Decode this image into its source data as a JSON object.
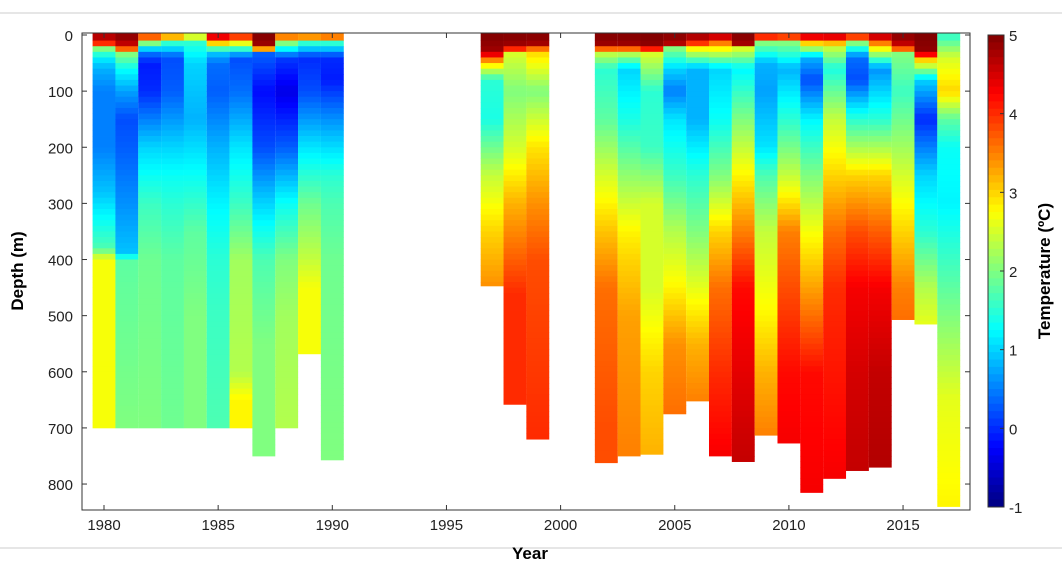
{
  "chart_data": {
    "type": "heatmap",
    "title": "",
    "xlabel": "Year",
    "ylabel": "Depth (m)",
    "colorbar_label": "Temperature (ºC)",
    "colormap": "jet",
    "clim": [
      -1,
      5
    ],
    "xlim": [
      1979,
      2018
    ],
    "ylim": [
      850,
      -4
    ],
    "xticks": [
      "1980",
      "1985",
      "1990",
      "1995",
      "2000",
      "2005",
      "2010",
      "2015"
    ],
    "yticks": [
      "0",
      "100",
      "200",
      "300",
      "400",
      "500",
      "600",
      "700",
      "800"
    ],
    "cticks": [
      "5",
      "4",
      "3",
      "2",
      "1",
      "0",
      "-1"
    ],
    "columns": [
      {
        "year": 1980,
        "max_depth": 700,
        "profile": [
          [
            0,
            5
          ],
          [
            15,
            4
          ],
          [
            25,
            2
          ],
          [
            40,
            1.2
          ],
          [
            60,
            0.8
          ],
          [
            100,
            0.5
          ],
          [
            200,
            0.5
          ],
          [
            280,
            0.9
          ],
          [
            330,
            1.3
          ],
          [
            380,
            1.7
          ],
          [
            400,
            2.7
          ],
          [
            700,
            2.7
          ]
        ]
      },
      {
        "year": 1981,
        "max_depth": 700,
        "profile": [
          [
            0,
            5
          ],
          [
            20,
            4.5
          ],
          [
            35,
            2
          ],
          [
            60,
            1.3
          ],
          [
            100,
            0.7
          ],
          [
            150,
            0.2
          ],
          [
            200,
            0.3
          ],
          [
            300,
            0.6
          ],
          [
            390,
            0.9
          ],
          [
            400,
            1.8
          ],
          [
            550,
            1.9
          ],
          [
            700,
            2
          ]
        ]
      },
      {
        "year": 1982,
        "max_depth": 700,
        "profile": [
          [
            0,
            4.5
          ],
          [
            15,
            2
          ],
          [
            30,
            0.5
          ],
          [
            50,
            -0.1
          ],
          [
            100,
            0
          ],
          [
            150,
            0.5
          ],
          [
            200,
            1
          ],
          [
            250,
            1.3
          ],
          [
            300,
            1.6
          ],
          [
            400,
            1.9
          ],
          [
            700,
            2
          ]
        ]
      },
      {
        "year": 1983,
        "max_depth": 700,
        "profile": [
          [
            0,
            4
          ],
          [
            15,
            1.5
          ],
          [
            40,
            0.2
          ],
          [
            100,
            0.3
          ],
          [
            200,
            1
          ],
          [
            250,
            1.3
          ],
          [
            300,
            1.5
          ],
          [
            400,
            1.8
          ],
          [
            700,
            1.9
          ]
        ]
      },
      {
        "year": 1984,
        "max_depth": 700,
        "profile": [
          [
            0,
            3
          ],
          [
            15,
            1.5
          ],
          [
            50,
            1
          ],
          [
            150,
            0.8
          ],
          [
            250,
            1.3
          ],
          [
            350,
            1.8
          ],
          [
            500,
            2
          ],
          [
            700,
            2
          ]
        ]
      },
      {
        "year": 1985,
        "max_depth": 700,
        "profile": [
          [
            0,
            5
          ],
          [
            15,
            3
          ],
          [
            30,
            1
          ],
          [
            50,
            0.4
          ],
          [
            100,
            0.3
          ],
          [
            200,
            0.8
          ],
          [
            300,
            1.2
          ],
          [
            400,
            1.5
          ],
          [
            500,
            1.6
          ],
          [
            700,
            1.7
          ]
        ]
      },
      {
        "year": 1986,
        "max_depth": 700,
        "profile": [
          [
            0,
            4.5
          ],
          [
            20,
            2
          ],
          [
            40,
            0.2
          ],
          [
            100,
            0.4
          ],
          [
            200,
            1.1
          ],
          [
            300,
            1.6
          ],
          [
            400,
            2.2
          ],
          [
            600,
            2.3
          ],
          [
            650,
            2.8
          ],
          [
            700,
            2.8
          ]
        ]
      },
      {
        "year": 1987,
        "max_depth": 750,
        "profile": [
          [
            0,
            5
          ],
          [
            20,
            4.8
          ],
          [
            35,
            0.3
          ],
          [
            100,
            -0.2
          ],
          [
            200,
            0.2
          ],
          [
            300,
            1
          ],
          [
            400,
            1.7
          ],
          [
            550,
            2
          ],
          [
            750,
            2
          ]
        ]
      },
      {
        "year": 1988,
        "max_depth": 700,
        "profile": [
          [
            0,
            4.2
          ],
          [
            15,
            2
          ],
          [
            40,
            0.1
          ],
          [
            100,
            -0.4
          ],
          [
            200,
            0.3
          ],
          [
            300,
            1.3
          ],
          [
            400,
            2
          ],
          [
            500,
            2.2
          ],
          [
            700,
            2.3
          ]
        ]
      },
      {
        "year": 1989,
        "max_depth": 568,
        "profile": [
          [
            0,
            4.3
          ],
          [
            15,
            1.5
          ],
          [
            40,
            0
          ],
          [
            100,
            0.2
          ],
          [
            200,
            1.1
          ],
          [
            300,
            1.9
          ],
          [
            400,
            2.4
          ],
          [
            450,
            2.7
          ],
          [
            568,
            2.7
          ]
        ]
      },
      {
        "year": 1990,
        "max_depth": 757,
        "profile": [
          [
            0,
            4.5
          ],
          [
            15,
            1.5
          ],
          [
            40,
            0
          ],
          [
            80,
            -0.1
          ],
          [
            150,
            0.6
          ],
          [
            250,
            1.5
          ],
          [
            300,
            1.7
          ],
          [
            400,
            1.9
          ],
          [
            757,
            2
          ]
        ]
      },
      {
        "year": 1997,
        "max_depth": 447,
        "profile": [
          [
            0,
            5
          ],
          [
            30,
            4.8
          ],
          [
            50,
            3
          ],
          [
            80,
            1.5
          ],
          [
            150,
            1.4
          ],
          [
            250,
            2.4
          ],
          [
            350,
            3
          ],
          [
            447,
            3.4
          ]
        ]
      },
      {
        "year": 1998,
        "max_depth": 658,
        "profile": [
          [
            0,
            5
          ],
          [
            20,
            4.8
          ],
          [
            35,
            2.5
          ],
          [
            100,
            2
          ],
          [
            200,
            2.5
          ],
          [
            300,
            3.2
          ],
          [
            400,
            3.7
          ],
          [
            460,
            4
          ],
          [
            658,
            4
          ]
        ]
      },
      {
        "year": 1999,
        "max_depth": 720,
        "profile": [
          [
            0,
            5
          ],
          [
            15,
            4.8
          ],
          [
            30,
            3
          ],
          [
            100,
            2
          ],
          [
            200,
            2.9
          ],
          [
            300,
            3.4
          ],
          [
            400,
            3.8
          ],
          [
            720,
            4
          ]
        ]
      },
      {
        "year": 2002,
        "max_depth": 762,
        "profile": [
          [
            0,
            5
          ],
          [
            20,
            4.8
          ],
          [
            30,
            2.5
          ],
          [
            60,
            1.5
          ],
          [
            150,
            1.8
          ],
          [
            250,
            2.5
          ],
          [
            350,
            3.1
          ],
          [
            450,
            3.6
          ],
          [
            700,
            3.8
          ],
          [
            762,
            3.8
          ]
        ]
      },
      {
        "year": 2003,
        "max_depth": 750,
        "profile": [
          [
            0,
            5
          ],
          [
            20,
            4.8
          ],
          [
            30,
            2.5
          ],
          [
            60,
            1
          ],
          [
            150,
            1.4
          ],
          [
            250,
            2.1
          ],
          [
            350,
            2.8
          ],
          [
            400,
            3
          ],
          [
            500,
            3.3
          ],
          [
            750,
            3.5
          ]
        ]
      },
      {
        "year": 2004,
        "max_depth": 747,
        "profile": [
          [
            0,
            5
          ],
          [
            20,
            4.9
          ],
          [
            35,
            2.5
          ],
          [
            100,
            1.5
          ],
          [
            200,
            1.6
          ],
          [
            300,
            2.5
          ],
          [
            450,
            2.5
          ],
          [
            600,
            3
          ],
          [
            747,
            3.2
          ]
        ]
      },
      {
        "year": 2005,
        "max_depth": 675,
        "profile": [
          [
            0,
            5
          ],
          [
            15,
            4.7
          ],
          [
            25,
            2
          ],
          [
            60,
            1
          ],
          [
            100,
            0.5
          ],
          [
            150,
            1.1
          ],
          [
            250,
            1.6
          ],
          [
            350,
            2.3
          ],
          [
            450,
            2.8
          ],
          [
            550,
            3.4
          ],
          [
            675,
            3.6
          ]
        ]
      },
      {
        "year": 2006,
        "max_depth": 652,
        "profile": [
          [
            0,
            4.5
          ],
          [
            10,
            4.9
          ],
          [
            20,
            3
          ],
          [
            60,
            0.8
          ],
          [
            150,
            0.8
          ],
          [
            250,
            1.5
          ],
          [
            350,
            2
          ],
          [
            450,
            2.6
          ],
          [
            550,
            3.2
          ],
          [
            652,
            3.5
          ]
        ]
      },
      {
        "year": 2007,
        "max_depth": 750,
        "profile": [
          [
            0,
            5
          ],
          [
            20,
            3
          ],
          [
            60,
            1
          ],
          [
            150,
            1.3
          ],
          [
            250,
            2
          ],
          [
            350,
            3
          ],
          [
            450,
            3.6
          ],
          [
            600,
            4
          ],
          [
            750,
            4.3
          ]
        ]
      },
      {
        "year": 2008,
        "max_depth": 760,
        "profile": [
          [
            0,
            5
          ],
          [
            15,
            4.8
          ],
          [
            25,
            2.5
          ],
          [
            60,
            1.2
          ],
          [
            150,
            2
          ],
          [
            250,
            2.8
          ],
          [
            350,
            3.5
          ],
          [
            450,
            4.2
          ],
          [
            600,
            4.4
          ],
          [
            760,
            4.6
          ]
        ]
      },
      {
        "year": 2009,
        "max_depth": 713,
        "profile": [
          [
            0,
            5
          ],
          [
            15,
            2
          ],
          [
            50,
            0.8
          ],
          [
            100,
            0.7
          ],
          [
            200,
            1.1
          ],
          [
            250,
            1.7
          ],
          [
            350,
            2.4
          ],
          [
            500,
            2.8
          ],
          [
            600,
            3.2
          ],
          [
            713,
            3.5
          ]
        ]
      },
      {
        "year": 2010,
        "max_depth": 727,
        "profile": [
          [
            0,
            4.8
          ],
          [
            15,
            2
          ],
          [
            60,
            0.8
          ],
          [
            150,
            1.5
          ],
          [
            250,
            2.4
          ],
          [
            350,
            3.5
          ],
          [
            450,
            3.8
          ],
          [
            600,
            4.2
          ],
          [
            727,
            4.3
          ]
        ]
      },
      {
        "year": 2011,
        "max_depth": 815,
        "profile": [
          [
            0,
            5
          ],
          [
            15,
            3
          ],
          [
            40,
            0.8
          ],
          [
            80,
            0.2
          ],
          [
            150,
            1.2
          ],
          [
            250,
            2
          ],
          [
            350,
            2.7
          ],
          [
            450,
            3.3
          ],
          [
            600,
            4.2
          ],
          [
            815,
            4.3
          ]
        ]
      },
      {
        "year": 2012,
        "max_depth": 790,
        "profile": [
          [
            0,
            5
          ],
          [
            20,
            2.5
          ],
          [
            60,
            1.4
          ],
          [
            150,
            2.4
          ],
          [
            250,
            3
          ],
          [
            350,
            3.6
          ],
          [
            450,
            4
          ],
          [
            790,
            4.3
          ]
        ]
      },
      {
        "year": 2013,
        "max_depth": 776,
        "profile": [
          [
            0,
            4.8
          ],
          [
            15,
            2
          ],
          [
            40,
            0.4
          ],
          [
            80,
            0.2
          ],
          [
            150,
            1.5
          ],
          [
            250,
            3
          ],
          [
            350,
            3.8
          ],
          [
            450,
            4.3
          ],
          [
            600,
            4.5
          ],
          [
            776,
            4.6
          ]
        ]
      },
      {
        "year": 2014,
        "max_depth": 770,
        "profile": [
          [
            0,
            5
          ],
          [
            20,
            3
          ],
          [
            60,
            0.6
          ],
          [
            150,
            1.5
          ],
          [
            250,
            3
          ],
          [
            350,
            3.7
          ],
          [
            450,
            4.3
          ],
          [
            600,
            4.6
          ],
          [
            770,
            4.7
          ]
        ]
      },
      {
        "year": 2015,
        "max_depth": 507,
        "profile": [
          [
            0,
            5
          ],
          [
            20,
            4.5
          ],
          [
            35,
            2
          ],
          [
            100,
            1.6
          ],
          [
            250,
            2.5
          ],
          [
            350,
            3
          ],
          [
            450,
            3.5
          ],
          [
            507,
            3.6
          ]
        ]
      },
      {
        "year": 2016,
        "max_depth": 515,
        "profile": [
          [
            0,
            5
          ],
          [
            30,
            4.9
          ],
          [
            45,
            3
          ],
          [
            80,
            1
          ],
          [
            150,
            0
          ],
          [
            250,
            1
          ],
          [
            350,
            1.5
          ],
          [
            450,
            2.3
          ],
          [
            515,
            2.6
          ]
        ]
      },
      {
        "year": 2017,
        "max_depth": 840,
        "profile": [
          [
            0,
            1.5
          ],
          [
            40,
            2.5
          ],
          [
            100,
            3
          ],
          [
            150,
            1.8
          ],
          [
            200,
            1.3
          ],
          [
            300,
            1.2
          ],
          [
            400,
            1.6
          ],
          [
            500,
            2
          ],
          [
            650,
            2.6
          ],
          [
            840,
            2.8
          ]
        ]
      }
    ]
  }
}
